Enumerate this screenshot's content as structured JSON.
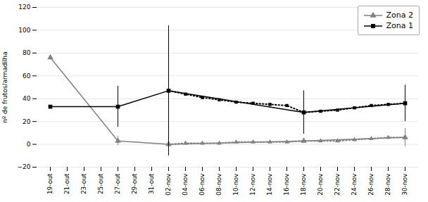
{
  "chart_data": {
    "type": "line",
    "categories": [
      "19-out",
      "21-out",
      "23-out",
      "25-out",
      "27-out",
      "29-out",
      "31-out",
      "02-nov",
      "04-nov",
      "06-nov",
      "08-nov",
      "10-nov",
      "12-nov",
      "14-nov",
      "16-nov",
      "18-nov",
      "20-nov",
      "22-nov",
      "24-nov",
      "26-nov",
      "28-nov",
      "30-nov"
    ],
    "ylabel": "nº de frutos/armadilha",
    "ylim": [
      -20,
      120
    ],
    "yticks": [
      -20,
      0,
      20,
      40,
      60,
      80,
      100,
      120
    ],
    "grid": true,
    "legend": "upper right",
    "series": [
      {
        "name": "Zona 2",
        "color": "#808080",
        "marker": "triangle",
        "line_style": "solid",
        "x": [
          "19-out",
          "27-out",
          "02-nov",
          "18-nov",
          "30-nov"
        ],
        "values": [
          76,
          3,
          0,
          3,
          6
        ],
        "errors": [
          2,
          4,
          0,
          1,
          8
        ]
      },
      {
        "name": "Zona 2",
        "color": "#808080",
        "marker": "triangle",
        "line_style": "dotted",
        "x": [
          "02-nov",
          "04-nov",
          "06-nov",
          "08-nov",
          "10-nov",
          "12-nov",
          "14-nov",
          "16-nov",
          "18-nov",
          "20-nov",
          "22-nov",
          "24-nov",
          "26-nov",
          "28-nov",
          "30-nov"
        ],
        "values": [
          0,
          1,
          1,
          1,
          2,
          2,
          2,
          2,
          3,
          3,
          3,
          4,
          5,
          6,
          6
        ]
      },
      {
        "name": "Zona 1",
        "color": "#000000",
        "marker": "square",
        "line_style": "solid",
        "x": [
          "19-out",
          "27-out",
          "02-nov",
          "18-nov",
          "30-nov"
        ],
        "values": [
          33,
          33,
          47,
          28,
          36
        ],
        "errors": [
          0,
          18,
          57,
          19,
          16
        ]
      },
      {
        "name": "Zona 1",
        "color": "#000000",
        "marker": "square",
        "line_style": "dotted",
        "x": [
          "02-nov",
          "04-nov",
          "06-nov",
          "08-nov",
          "10-nov",
          "12-nov",
          "14-nov",
          "16-nov",
          "18-nov",
          "20-nov",
          "22-nov",
          "24-nov",
          "26-nov",
          "28-nov",
          "30-nov"
        ],
        "values": [
          47,
          44,
          41,
          39,
          37,
          36,
          35,
          34,
          28,
          29,
          30,
          32,
          34,
          35,
          36
        ]
      }
    ]
  }
}
